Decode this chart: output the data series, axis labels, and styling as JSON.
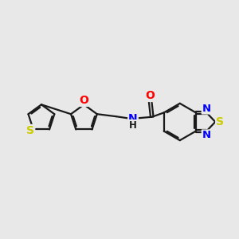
{
  "bg_color": "#e8e8e8",
  "bond_color": "#1a1a1a",
  "bond_width": 1.6,
  "dbo": 0.06,
  "atom_colors": {
    "S": "#cccc00",
    "O": "#ff0000",
    "N": "#0000ff",
    "NH": "#008080"
  },
  "font_size": 9.5,
  "fig_size": [
    3.0,
    3.0
  ],
  "dpi": 100,
  "xlim": [
    0,
    10
  ],
  "ylim": [
    2,
    8
  ]
}
